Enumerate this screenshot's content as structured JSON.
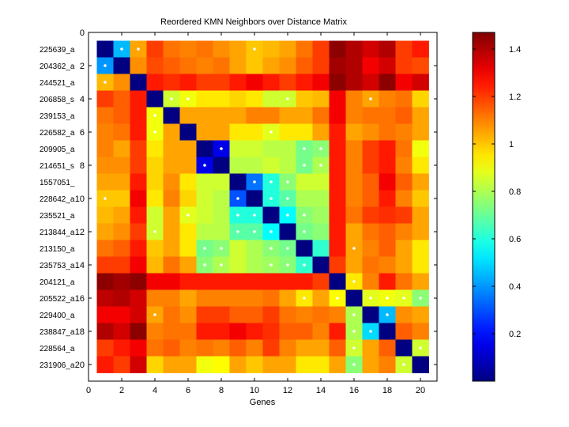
{
  "chart_data": {
    "type": "heatmap",
    "title": "Reordered KMN Neighbors over Distance Matrix",
    "xlabel": "Genes",
    "ylabel": "",
    "xlim": [
      0,
      21
    ],
    "ylim": [
      21,
      0
    ],
    "x_ticks": [
      0,
      2,
      4,
      6,
      8,
      10,
      12,
      14,
      16,
      18,
      20
    ],
    "y_ticks": [
      0,
      2,
      4,
      6,
      8,
      10,
      12,
      14,
      16,
      18,
      20
    ],
    "row_labels": [
      "225639_a",
      "204362_a",
      "244521_a",
      "206858_s",
      "239153_a",
      "226582_a",
      "209905_a",
      "214651_s",
      "1557051_",
      "228642_a",
      "235521_a",
      "213844_a",
      "213150_a",
      "235753_a",
      "204121_a",
      "205522_a",
      "229400_a",
      "238847_a",
      "228564_a",
      "231906_a"
    ],
    "colorbar": {
      "min": 0.0,
      "max": 1.47,
      "ticks": [
        0.2,
        0.4,
        0.6,
        0.8,
        1,
        1.2,
        1.4
      ],
      "colormap": "jet"
    },
    "values": [
      [
        0.0,
        0.45,
        1.05,
        1.2,
        1.12,
        1.1,
        1.12,
        1.08,
        1.05,
        1.0,
        1.02,
        1.05,
        1.12,
        1.2,
        1.45,
        1.4,
        1.35,
        1.4,
        1.2,
        1.25
      ],
      [
        0.4,
        0.0,
        1.08,
        1.18,
        1.15,
        1.12,
        1.1,
        1.12,
        1.05,
        1.0,
        1.05,
        1.08,
        1.15,
        1.2,
        1.42,
        1.4,
        1.3,
        1.35,
        1.2,
        1.18
      ],
      [
        1.02,
        1.08,
        0.0,
        1.25,
        1.22,
        1.25,
        1.2,
        1.2,
        1.25,
        1.3,
        1.25,
        1.2,
        1.25,
        1.3,
        1.45,
        1.4,
        1.35,
        1.45,
        1.3,
        1.35
      ],
      [
        1.2,
        1.15,
        1.25,
        0.0,
        0.85,
        0.9,
        0.95,
        0.95,
        0.98,
        0.95,
        0.85,
        0.85,
        1.0,
        1.02,
        1.3,
        1.1,
        1.05,
        1.1,
        1.12,
        0.98
      ],
      [
        1.12,
        1.15,
        1.25,
        0.9,
        0.0,
        1.05,
        1.05,
        1.05,
        1.05,
        1.1,
        1.1,
        1.05,
        1.05,
        1.12,
        1.3,
        1.1,
        1.12,
        1.12,
        1.15,
        1.05
      ],
      [
        1.1,
        1.12,
        1.25,
        0.9,
        1.05,
        0.0,
        1.05,
        1.05,
        0.95,
        0.95,
        0.88,
        0.95,
        0.95,
        1.05,
        1.25,
        1.05,
        1.08,
        1.12,
        1.1,
        1.05
      ],
      [
        1.1,
        1.05,
        1.2,
        0.95,
        1.05,
        1.05,
        0.0,
        0.15,
        0.85,
        0.85,
        0.82,
        0.82,
        0.72,
        0.75,
        1.25,
        1.1,
        1.2,
        1.25,
        1.12,
        0.9
      ],
      [
        1.08,
        1.08,
        1.2,
        0.98,
        1.05,
        1.05,
        0.15,
        0.0,
        0.82,
        0.82,
        0.85,
        0.82,
        0.72,
        0.8,
        1.25,
        1.1,
        1.2,
        1.25,
        1.1,
        0.95
      ],
      [
        1.05,
        1.05,
        1.25,
        0.98,
        1.08,
        0.95,
        0.85,
        0.85,
        0.0,
        0.35,
        0.6,
        0.75,
        0.85,
        0.85,
        1.25,
        1.1,
        1.15,
        1.3,
        1.15,
        1.05
      ],
      [
        1.0,
        1.0,
        1.3,
        0.95,
        1.1,
        0.98,
        0.85,
        0.82,
        0.3,
        0.0,
        0.6,
        0.68,
        0.8,
        0.8,
        1.25,
        1.1,
        1.15,
        1.25,
        1.1,
        1.0
      ],
      [
        1.02,
        1.05,
        1.25,
        0.85,
        1.05,
        0.88,
        0.85,
        0.82,
        0.6,
        0.6,
        0.0,
        0.55,
        0.75,
        0.78,
        1.25,
        1.12,
        1.2,
        1.22,
        1.2,
        1.05
      ],
      [
        1.05,
        1.08,
        1.2,
        0.85,
        1.05,
        0.95,
        0.82,
        0.82,
        0.68,
        0.68,
        0.55,
        0.0,
        0.72,
        0.75,
        1.25,
        1.05,
        1.12,
        1.15,
        1.1,
        1.05
      ],
      [
        1.12,
        1.15,
        1.25,
        1.0,
        1.05,
        0.95,
        0.72,
        0.75,
        0.85,
        0.8,
        0.75,
        0.72,
        0.0,
        0.62,
        1.25,
        1.05,
        1.1,
        1.15,
        1.05,
        0.95
      ],
      [
        1.2,
        1.2,
        1.3,
        1.02,
        1.12,
        1.05,
        0.75,
        0.8,
        0.85,
        0.8,
        0.78,
        0.75,
        0.62,
        0.0,
        1.2,
        1.05,
        1.12,
        1.1,
        1.05,
        0.95
      ],
      [
        1.45,
        1.42,
        1.45,
        1.3,
        1.3,
        1.25,
        1.25,
        1.25,
        1.25,
        1.25,
        1.25,
        1.25,
        1.25,
        1.2,
        0.0,
        0.95,
        1.1,
        1.25,
        1.12,
        1.05
      ],
      [
        1.38,
        1.4,
        1.35,
        1.1,
        1.1,
        1.05,
        1.1,
        1.1,
        1.1,
        1.1,
        1.12,
        1.05,
        0.95,
        1.05,
        0.92,
        0.0,
        0.88,
        0.9,
        0.88,
        0.75
      ],
      [
        1.3,
        1.3,
        1.35,
        1.05,
        1.12,
        1.08,
        1.2,
        1.2,
        1.15,
        1.15,
        1.2,
        1.12,
        1.1,
        1.12,
        1.1,
        0.8,
        0.0,
        0.45,
        1.08,
        1.05
      ],
      [
        1.4,
        1.35,
        1.45,
        1.1,
        1.12,
        1.12,
        1.25,
        1.25,
        1.3,
        1.25,
        1.22,
        1.15,
        1.15,
        1.1,
        1.25,
        0.8,
        0.5,
        0.0,
        1.15,
        1.1
      ],
      [
        1.2,
        1.25,
        1.3,
        1.12,
        1.15,
        1.1,
        1.12,
        1.1,
        1.15,
        1.1,
        1.2,
        1.1,
        1.05,
        1.05,
        1.15,
        0.85,
        1.05,
        1.15,
        0.0,
        0.85
      ],
      [
        1.25,
        1.2,
        1.35,
        0.98,
        1.05,
        1.05,
        0.9,
        0.92,
        1.05,
        1.0,
        1.05,
        1.05,
        0.95,
        0.95,
        1.05,
        0.75,
        1.05,
        1.1,
        0.85,
        0.0
      ]
    ],
    "neighbor_markers": [
      [
        1,
        2
      ],
      [
        1,
        3
      ],
      [
        1,
        10
      ],
      [
        2,
        1
      ],
      [
        3,
        1
      ],
      [
        4,
        5
      ],
      [
        4,
        6
      ],
      [
        4,
        12
      ],
      [
        4,
        17
      ],
      [
        5,
        4
      ],
      [
        6,
        4
      ],
      [
        6,
        11
      ],
      [
        7,
        8
      ],
      [
        7,
        13
      ],
      [
        7,
        14
      ],
      [
        8,
        7
      ],
      [
        8,
        13
      ],
      [
        8,
        14
      ],
      [
        9,
        10
      ],
      [
        9,
        11
      ],
      [
        9,
        12
      ],
      [
        10,
        1
      ],
      [
        10,
        9
      ],
      [
        10,
        11
      ],
      [
        10,
        12
      ],
      [
        11,
        6
      ],
      [
        11,
        9
      ],
      [
        11,
        10
      ],
      [
        11,
        12
      ],
      [
        11,
        13
      ],
      [
        12,
        4
      ],
      [
        12,
        9
      ],
      [
        12,
        10
      ],
      [
        12,
        11
      ],
      [
        12,
        13
      ],
      [
        13,
        7
      ],
      [
        13,
        8
      ],
      [
        13,
        11
      ],
      [
        13,
        12
      ],
      [
        13,
        16
      ],
      [
        14,
        7
      ],
      [
        14,
        8
      ],
      [
        14,
        11
      ],
      [
        14,
        12
      ],
      [
        14,
        13
      ],
      [
        15,
        16
      ],
      [
        16,
        13
      ],
      [
        16,
        15
      ],
      [
        16,
        17
      ],
      [
        16,
        18
      ],
      [
        16,
        19
      ],
      [
        16,
        20
      ],
      [
        17,
        4
      ],
      [
        17,
        16
      ],
      [
        17,
        18
      ],
      [
        18,
        16
      ],
      [
        18,
        17
      ],
      [
        19,
        16
      ],
      [
        19,
        20
      ],
      [
        20,
        16
      ],
      [
        20,
        19
      ]
    ]
  }
}
